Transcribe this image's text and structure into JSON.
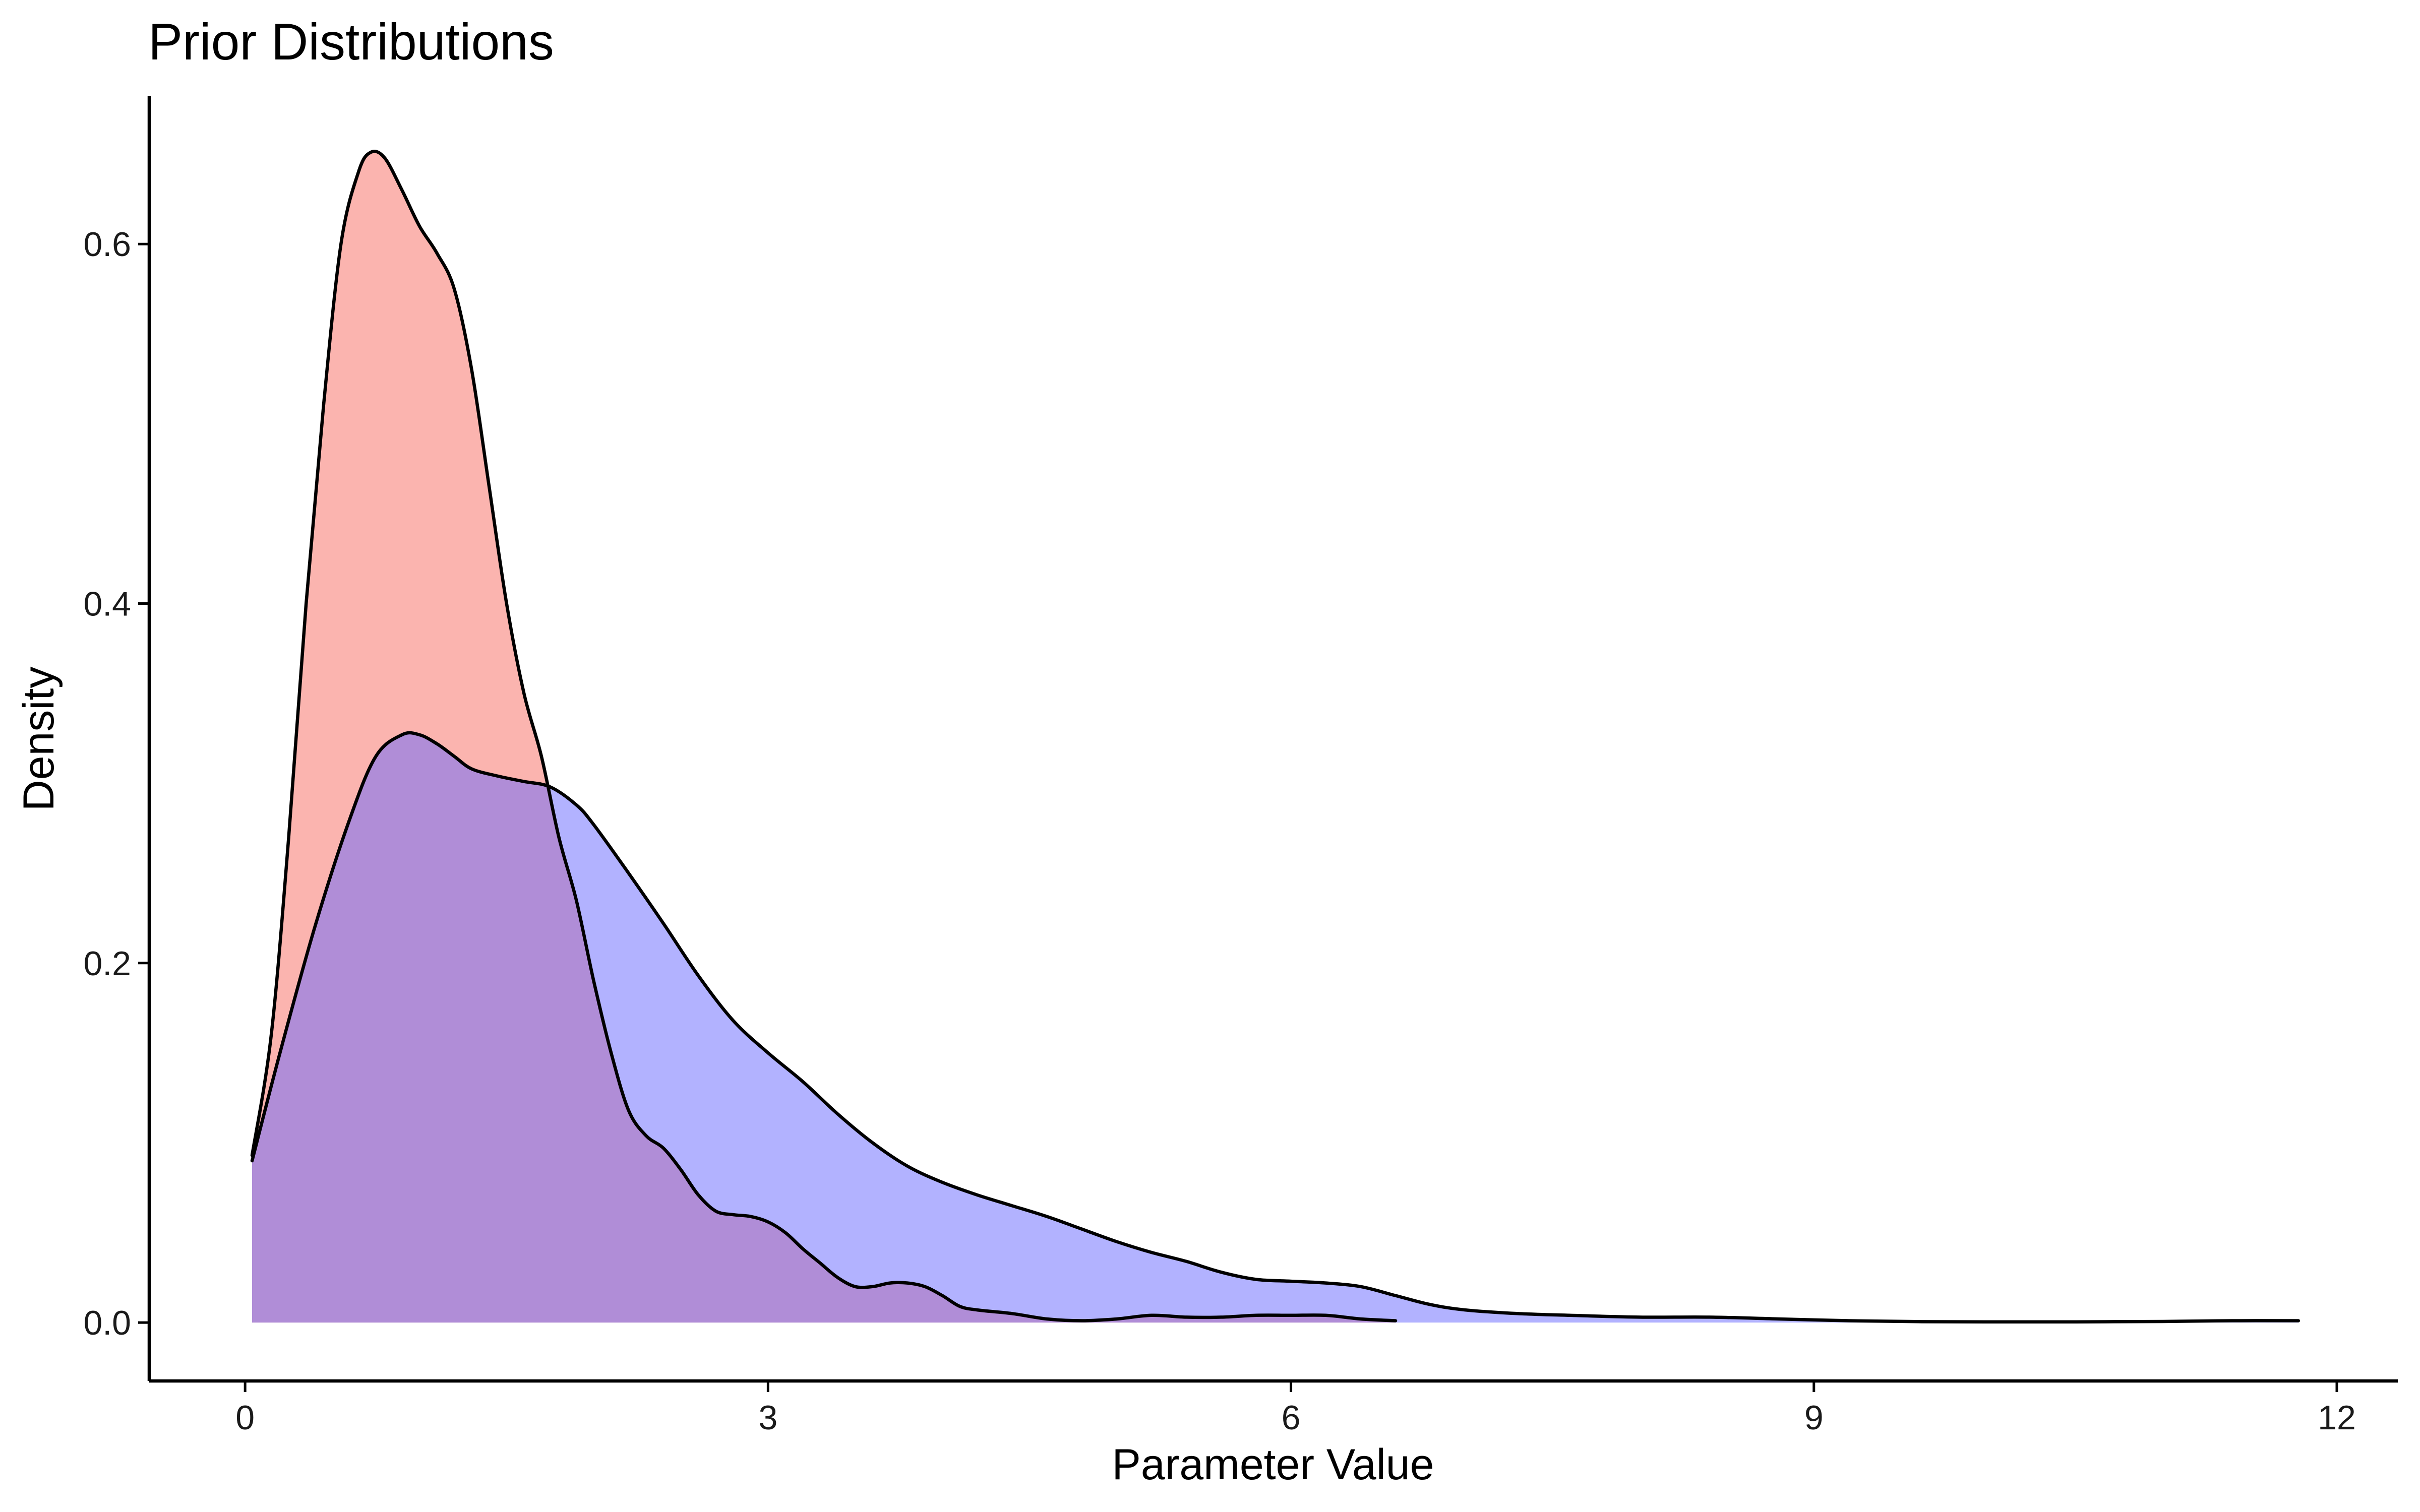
{
  "chart_data": {
    "type": "area",
    "title": "Prior Distributions",
    "xlabel": "Parameter Value",
    "ylabel": "Density",
    "xlim": [
      -0.55,
      12.35
    ],
    "ylim": [
      -0.0325,
      0.6825
    ],
    "x_ticks": [
      0,
      3,
      6,
      9,
      12
    ],
    "x_tick_labels": [
      "0",
      "3",
      "6",
      "9",
      "12"
    ],
    "y_ticks": [
      0.0,
      0.2,
      0.4,
      0.6
    ],
    "y_tick_labels": [
      "0.0",
      "0.2",
      "0.4",
      "0.6"
    ],
    "grid": false,
    "legend": "none",
    "series": [
      {
        "fill": "#f8766d",
        "fill_opacity": 0.55,
        "points": [
          [
            0.04,
            0.093
          ],
          [
            0.15,
            0.16
          ],
          [
            0.25,
            0.27
          ],
          [
            0.35,
            0.4
          ],
          [
            0.45,
            0.51
          ],
          [
            0.55,
            0.6
          ],
          [
            0.65,
            0.64
          ],
          [
            0.72,
            0.651
          ],
          [
            0.8,
            0.648
          ],
          [
            0.9,
            0.63
          ],
          [
            1.0,
            0.61
          ],
          [
            1.1,
            0.595
          ],
          [
            1.2,
            0.575
          ],
          [
            1.3,
            0.53
          ],
          [
            1.4,
            0.465
          ],
          [
            1.5,
            0.4
          ],
          [
            1.6,
            0.35
          ],
          [
            1.7,
            0.315
          ],
          [
            1.8,
            0.27
          ],
          [
            1.9,
            0.235
          ],
          [
            2.0,
            0.19
          ],
          [
            2.1,
            0.15
          ],
          [
            2.2,
            0.118
          ],
          [
            2.3,
            0.104
          ],
          [
            2.4,
            0.097
          ],
          [
            2.5,
            0.085
          ],
          [
            2.6,
            0.071
          ],
          [
            2.7,
            0.062
          ],
          [
            2.8,
            0.06
          ],
          [
            2.9,
            0.059
          ],
          [
            3.0,
            0.056
          ],
          [
            3.1,
            0.05
          ],
          [
            3.2,
            0.041
          ],
          [
            3.3,
            0.033
          ],
          [
            3.4,
            0.025
          ],
          [
            3.5,
            0.02
          ],
          [
            3.6,
            0.02
          ],
          [
            3.7,
            0.022
          ],
          [
            3.8,
            0.022
          ],
          [
            3.9,
            0.02
          ],
          [
            4.0,
            0.015
          ],
          [
            4.1,
            0.009
          ],
          [
            4.2,
            0.007
          ],
          [
            4.4,
            0.005
          ],
          [
            4.6,
            0.002
          ],
          [
            4.8,
            0.001
          ],
          [
            5.0,
            0.002
          ],
          [
            5.2,
            0.004
          ],
          [
            5.4,
            0.003
          ],
          [
            5.6,
            0.003
          ],
          [
            5.8,
            0.004
          ],
          [
            6.0,
            0.004
          ],
          [
            6.2,
            0.004
          ],
          [
            6.4,
            0.002
          ],
          [
            6.6,
            0.001
          ]
        ]
      },
      {
        "fill": "#6666ff",
        "fill_opacity": 0.5,
        "points": [
          [
            0.04,
            0.09
          ],
          [
            0.2,
            0.15
          ],
          [
            0.4,
            0.22
          ],
          [
            0.6,
            0.28
          ],
          [
            0.75,
            0.315
          ],
          [
            0.9,
            0.327
          ],
          [
            1.0,
            0.327
          ],
          [
            1.1,
            0.322
          ],
          [
            1.2,
            0.315
          ],
          [
            1.3,
            0.308
          ],
          [
            1.45,
            0.304
          ],
          [
            1.6,
            0.301
          ],
          [
            1.75,
            0.298
          ],
          [
            1.9,
            0.288
          ],
          [
            2.0,
            0.277
          ],
          [
            2.2,
            0.25
          ],
          [
            2.4,
            0.222
          ],
          [
            2.6,
            0.193
          ],
          [
            2.8,
            0.168
          ],
          [
            3.0,
            0.15
          ],
          [
            3.2,
            0.134
          ],
          [
            3.4,
            0.116
          ],
          [
            3.6,
            0.1
          ],
          [
            3.8,
            0.087
          ],
          [
            4.0,
            0.078
          ],
          [
            4.2,
            0.071
          ],
          [
            4.4,
            0.065
          ],
          [
            4.6,
            0.059
          ],
          [
            4.8,
            0.052
          ],
          [
            5.0,
            0.045
          ],
          [
            5.2,
            0.039
          ],
          [
            5.4,
            0.034
          ],
          [
            5.6,
            0.028
          ],
          [
            5.8,
            0.024
          ],
          [
            6.0,
            0.023
          ],
          [
            6.2,
            0.022
          ],
          [
            6.4,
            0.02
          ],
          [
            6.6,
            0.015
          ],
          [
            6.8,
            0.01
          ],
          [
            7.0,
            0.007
          ],
          [
            7.3,
            0.005
          ],
          [
            7.6,
            0.004
          ],
          [
            8.0,
            0.003
          ],
          [
            8.4,
            0.003
          ],
          [
            8.8,
            0.002
          ],
          [
            9.2,
            0.001
          ],
          [
            9.6,
            0.0005
          ],
          [
            10.0,
            0.0004
          ],
          [
            10.5,
            0.0004
          ],
          [
            11.0,
            0.0006
          ],
          [
            11.4,
            0.001
          ],
          [
            11.78,
            0.001
          ]
        ]
      }
    ]
  }
}
